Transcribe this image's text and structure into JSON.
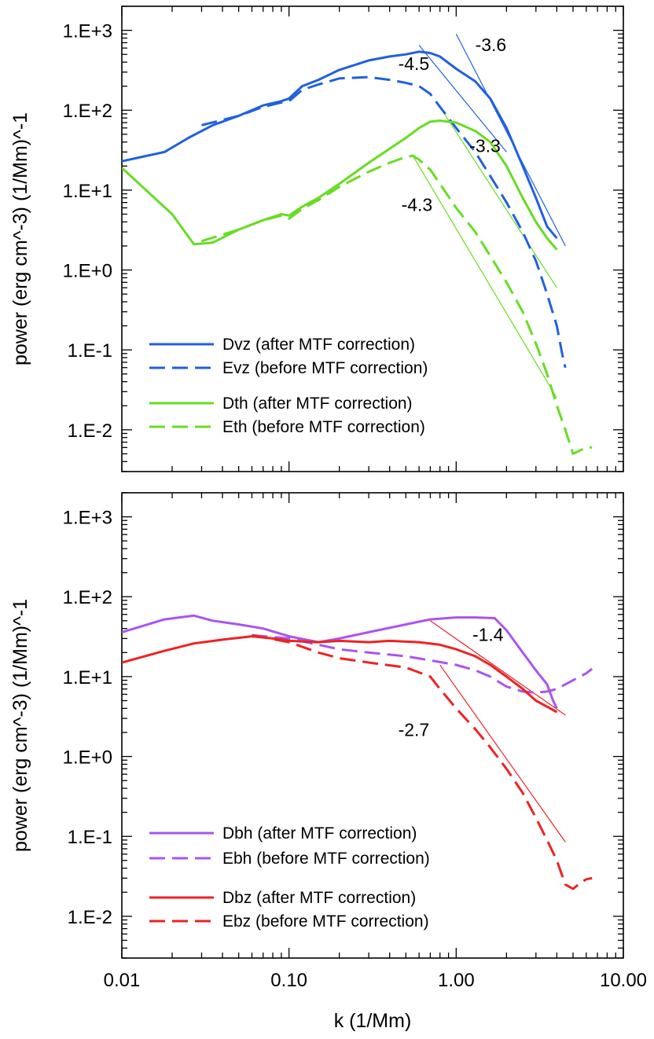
{
  "chart_data": [
    {
      "type": "line",
      "xscale": "log",
      "yscale": "log",
      "xlim": [
        0.01,
        10
      ],
      "ylim": [
        0.003,
        2000
      ],
      "ylabel": "power (erg cm^-3) (1/Mm)^-1",
      "xlabel": "",
      "yticks": [
        {
          "value": 1000,
          "label": "1.E+3"
        },
        {
          "value": 100,
          "label": "1.E+2"
        },
        {
          "value": 10,
          "label": "1.E+1"
        },
        {
          "value": 1,
          "label": "1.E+0"
        },
        {
          "value": 0.1,
          "label": "1.E-1"
        },
        {
          "value": 0.01,
          "label": "1.E-2"
        }
      ],
      "series": [
        {
          "name": "Dvz (after MTF correction)",
          "color": "#2060e0",
          "style": "solid",
          "x": [
            0.01,
            0.018,
            0.025,
            0.035,
            0.05,
            0.07,
            0.09,
            0.1,
            0.12,
            0.15,
            0.2,
            0.3,
            0.4,
            0.5,
            0.6,
            0.7,
            0.8,
            1.0,
            1.3,
            1.6,
            2.0,
            2.5,
            3.0,
            3.5,
            4.0
          ],
          "y": [
            23,
            30,
            45,
            65,
            85,
            115,
            130,
            140,
            200,
            240,
            320,
            420,
            470,
            500,
            540,
            520,
            470,
            330,
            230,
            140,
            60,
            20,
            8,
            3.5,
            2.5
          ]
        },
        {
          "name": "Evz (before MTF correction)",
          "color": "#2060e0",
          "style": "dashed",
          "x": [
            0.03,
            0.05,
            0.07,
            0.09,
            0.1,
            0.12,
            0.15,
            0.2,
            0.3,
            0.4,
            0.5,
            0.6,
            0.7,
            0.8,
            1.0,
            1.3,
            1.6,
            2.0,
            2.5,
            3.0,
            3.5,
            4.0,
            4.3,
            4.5
          ],
          "y": [
            65,
            85,
            110,
            125,
            130,
            180,
            210,
            250,
            260,
            240,
            220,
            200,
            160,
            110,
            60,
            30,
            15,
            7,
            3,
            1.3,
            0.5,
            0.2,
            0.09,
            0.06
          ]
        },
        {
          "name": "Dth (after MTF correction)",
          "color": "#66dd22",
          "style": "solid",
          "x": [
            0.01,
            0.02,
            0.027,
            0.035,
            0.05,
            0.07,
            0.09,
            0.1,
            0.12,
            0.15,
            0.2,
            0.3,
            0.4,
            0.5,
            0.6,
            0.7,
            0.8,
            1.0,
            1.3,
            1.6,
            2.0,
            2.5,
            3.0,
            3.5,
            4.0
          ],
          "y": [
            19,
            5,
            2.1,
            2.2,
            3.2,
            4.2,
            5,
            4.8,
            6.2,
            8,
            12,
            22,
            33,
            45,
            60,
            72,
            74,
            70,
            55,
            40,
            20,
            8,
            4,
            2.5,
            1.8
          ]
        },
        {
          "name": "Eth (before MTF correction)",
          "color": "#66dd22",
          "style": "dashed",
          "x": [
            0.03,
            0.05,
            0.07,
            0.09,
            0.1,
            0.12,
            0.15,
            0.2,
            0.3,
            0.4,
            0.5,
            0.55,
            0.6,
            0.7,
            0.8,
            1.0,
            1.3,
            1.6,
            2.0,
            2.5,
            3.0,
            3.5,
            4.0,
            4.5,
            5.0,
            6.0,
            6.5
          ],
          "y": [
            2.3,
            3.2,
            4.2,
            4.8,
            4.4,
            5.8,
            7.5,
            11,
            17,
            22,
            26,
            27,
            24,
            18,
            12,
            6,
            3,
            1.5,
            0.7,
            0.3,
            0.12,
            0.05,
            0.02,
            0.01,
            0.005,
            0.006,
            0.006
          ]
        }
      ],
      "fit_lines": [
        {
          "label": "-3.6",
          "color": "#2060e0",
          "x": [
            1.0,
            4.5
          ],
          "y": [
            900,
            2.0
          ]
        },
        {
          "label": "-4.5",
          "color": "#2060e0",
          "x": [
            0.6,
            2.0
          ],
          "y": [
            650,
            30
          ]
        },
        {
          "label": "-3.3",
          "color": "#66dd22",
          "x": [
            0.8,
            4.0
          ],
          "y": [
            110,
            0.6
          ]
        },
        {
          "label": "-4.3",
          "color": "#66dd22",
          "x": [
            0.55,
            4.0
          ],
          "y": [
            27,
            0.025
          ]
        }
      ],
      "slope_labels": [
        {
          "text": "-3.6",
          "x": 1.3,
          "y": 550
        },
        {
          "text": "-4.5",
          "x": 0.45,
          "y": 320
        },
        {
          "text": "-3.3",
          "x": 1.2,
          "y": 30
        },
        {
          "text": "-4.3",
          "x": 0.47,
          "y": 5.5
        }
      ],
      "legend": [
        {
          "label": "Dvz (after MTF correction)",
          "color": "#2060e0",
          "style": "solid"
        },
        {
          "label": "Evz (before MTF correction)",
          "color": "#2060e0",
          "style": "dashed"
        },
        {
          "label": "Dth (after MTF correction)",
          "color": "#66dd22",
          "style": "solid"
        },
        {
          "label": "Eth (before MTF correction)",
          "color": "#66dd22",
          "style": "dashed"
        }
      ],
      "legend_position": "bottom-left"
    },
    {
      "type": "line",
      "xscale": "log",
      "yscale": "log",
      "xlim": [
        0.01,
        10
      ],
      "ylim": [
        0.003,
        2000
      ],
      "ylabel": "power (erg cm^-3) (1/Mm)^-1",
      "xlabel": "k (1/Mm)",
      "xticks": [
        {
          "value": 0.01,
          "label": "0.01"
        },
        {
          "value": 0.1,
          "label": "0.10"
        },
        {
          "value": 1,
          "label": "1.00"
        },
        {
          "value": 10,
          "label": "10.00"
        }
      ],
      "yticks": [
        {
          "value": 1000,
          "label": "1.E+3"
        },
        {
          "value": 100,
          "label": "1.E+2"
        },
        {
          "value": 10,
          "label": "1.E+1"
        },
        {
          "value": 1,
          "label": "1.E+0"
        },
        {
          "value": 0.1,
          "label": "1.E-1"
        },
        {
          "value": 0.01,
          "label": "1.E-2"
        }
      ],
      "series": [
        {
          "name": "Dbh (after MTF correction)",
          "color": "#aa55ee",
          "style": "solid",
          "x": [
            0.01,
            0.018,
            0.027,
            0.035,
            0.05,
            0.07,
            0.1,
            0.15,
            0.2,
            0.3,
            0.5,
            0.7,
            1.0,
            1.3,
            1.7,
            2.0,
            2.5,
            3.0,
            3.5,
            3.8,
            4.0
          ],
          "y": [
            36,
            52,
            58,
            50,
            45,
            40,
            32,
            27,
            30,
            36,
            45,
            52,
            55,
            55,
            54,
            38,
            20,
            12,
            8,
            5,
            4
          ]
        },
        {
          "name": "Ebh (before MTF correction)",
          "color": "#aa55ee",
          "style": "dashed",
          "x": [
            0.06,
            0.1,
            0.15,
            0.2,
            0.3,
            0.5,
            0.7,
            1.0,
            1.3,
            1.6,
            2.0,
            2.5,
            3.0,
            3.5,
            4.0,
            5.0,
            6.0,
            6.5
          ],
          "y": [
            33,
            30,
            25,
            22,
            20,
            18,
            16,
            14,
            12,
            10,
            7.5,
            6.5,
            6.3,
            6.5,
            7,
            9,
            11,
            12.5
          ]
        },
        {
          "name": "Dbz (after MTF correction)",
          "color": "#ee2222",
          "style": "solid",
          "x": [
            0.01,
            0.018,
            0.027,
            0.04,
            0.06,
            0.08,
            0.1,
            0.15,
            0.2,
            0.3,
            0.4,
            0.6,
            0.8,
            1.0,
            1.3,
            1.6,
            2.0,
            2.5,
            3.0,
            3.5,
            4.0
          ],
          "y": [
            15,
            21,
            26,
            29,
            32,
            30,
            28,
            27,
            28,
            27,
            28,
            27,
            25,
            22,
            18,
            14,
            10,
            7,
            5,
            4.2,
            3.6
          ]
        },
        {
          "name": "Ebz (before MTF correction)",
          "color": "#ee2222",
          "style": "dashed",
          "x": [
            0.06,
            0.1,
            0.15,
            0.2,
            0.3,
            0.5,
            0.7,
            0.8,
            1.0,
            1.3,
            1.6,
            2.0,
            2.5,
            3.0,
            3.5,
            4.0,
            4.5,
            5.0,
            5.5,
            6.0,
            6.5
          ],
          "y": [
            33,
            27,
            20,
            17,
            15,
            13,
            10,
            7,
            4,
            2.2,
            1.3,
            0.7,
            0.35,
            0.17,
            0.09,
            0.05,
            0.025,
            0.022,
            0.026,
            0.029,
            0.03
          ]
        }
      ],
      "fit_lines": [
        {
          "label": "-1.4",
          "color": "#ee2222",
          "x": [
            0.7,
            4.5
          ],
          "y": [
            50,
            3.3
          ]
        },
        {
          "label": "-2.7",
          "color": "#ee2222",
          "x": [
            0.8,
            4.5
          ],
          "y": [
            14,
            0.085
          ]
        }
      ],
      "slope_labels": [
        {
          "text": "-1.4",
          "x": 1.25,
          "y": 28
        },
        {
          "text": "-2.7",
          "x": 0.45,
          "y": 1.8
        }
      ],
      "legend": [
        {
          "label": "Dbh (after MTF correction)",
          "color": "#aa55ee",
          "style": "solid"
        },
        {
          "label": "Ebh (before MTF correction)",
          "color": "#aa55ee",
          "style": "dashed"
        },
        {
          "label": "Dbz (after MTF correction)",
          "color": "#ee2222",
          "style": "solid"
        },
        {
          "label": "Ebz (before MTF correction)",
          "color": "#ee2222",
          "style": "dashed"
        }
      ],
      "legend_position": "bottom-left"
    }
  ]
}
